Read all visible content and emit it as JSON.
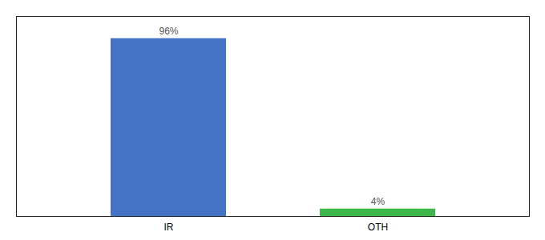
{
  "chart_data": {
    "type": "bar",
    "categories": [
      "IR",
      "OTH"
    ],
    "values": [
      96,
      4
    ],
    "value_labels": [
      "96%",
      "4%"
    ],
    "colors": [
      "#4472c4",
      "#3cb94a"
    ],
    "ylim": [
      0,
      108
    ],
    "data_labels": true,
    "tick_labels": "x",
    "grid": false
  }
}
